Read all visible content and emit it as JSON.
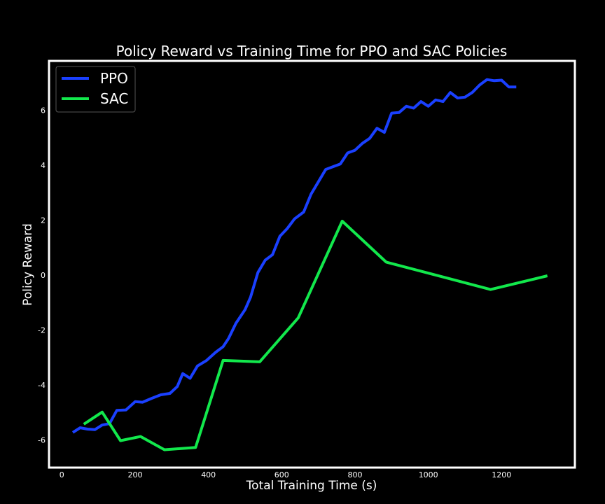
{
  "chart_data": {
    "type": "line",
    "title": "Policy Reward vs Training Time for PPO and SAC Policies",
    "xlabel": "Total Training Time (s)",
    "ylabel": "Policy Reward",
    "xlim": [
      -35,
      1400
    ],
    "ylim": [
      -7.0,
      7.8
    ],
    "x_ticks": [
      0,
      200,
      400,
      600,
      800,
      1000,
      1200
    ],
    "y_ticks": [
      -6,
      -4,
      -2,
      0,
      2,
      4,
      6
    ],
    "grid": false,
    "legend_position": "upper left",
    "background": "#000000",
    "series": [
      {
        "name": "PPO",
        "color": "#1a40ff",
        "x": [
          30,
          50,
          70,
          90,
          110,
          130,
          150,
          175,
          200,
          220,
          245,
          270,
          295,
          315,
          330,
          350,
          370,
          395,
          420,
          440,
          455,
          475,
          500,
          515,
          535,
          555,
          575,
          595,
          615,
          635,
          660,
          680,
          700,
          720,
          740,
          760,
          780,
          800,
          820,
          840,
          860,
          880,
          900,
          920,
          940,
          960,
          980,
          1000,
          1020,
          1040,
          1060,
          1080,
          1100,
          1120,
          1140,
          1160,
          1180,
          1200,
          1220,
          1240
        ],
        "y": [
          -5.72,
          -5.55,
          -5.6,
          -5.62,
          -5.45,
          -5.4,
          -4.92,
          -4.9,
          -4.6,
          -4.62,
          -4.48,
          -4.35,
          -4.3,
          -4.05,
          -3.58,
          -3.75,
          -3.3,
          -3.1,
          -2.8,
          -2.6,
          -2.3,
          -1.75,
          -1.25,
          -0.8,
          0.1,
          0.55,
          0.75,
          1.42,
          1.7,
          2.05,
          2.3,
          2.95,
          3.4,
          3.85,
          3.95,
          4.05,
          4.45,
          4.55,
          4.8,
          4.98,
          5.35,
          5.2,
          5.9,
          5.92,
          6.15,
          6.08,
          6.32,
          6.15,
          6.38,
          6.32,
          6.65,
          6.45,
          6.48,
          6.65,
          6.92,
          7.12,
          7.08,
          7.1,
          6.85,
          6.85
        ]
      },
      {
        "name": "SAC",
        "color": "#12e84c",
        "x": [
          60,
          110,
          160,
          215,
          280,
          365,
          440,
          540,
          645,
          765,
          885,
          1170,
          1325
        ],
        "y": [
          -5.42,
          -4.98,
          -6.02,
          -5.87,
          -6.35,
          -6.27,
          -3.1,
          -3.15,
          -1.55,
          1.97,
          0.48,
          -0.52,
          -0.02
        ]
      }
    ]
  }
}
